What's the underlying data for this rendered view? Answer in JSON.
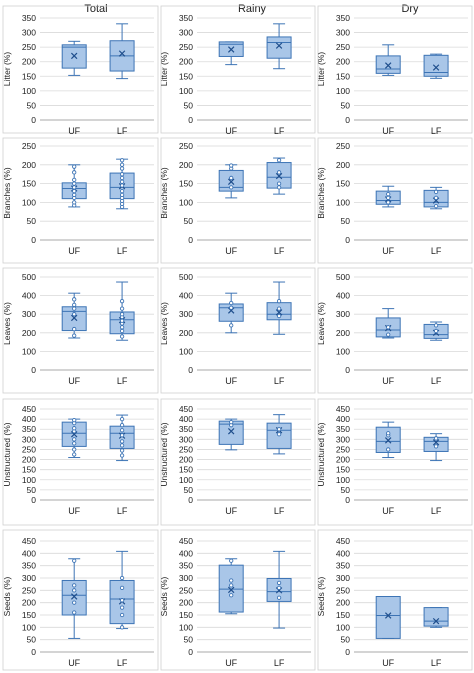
{
  "colors": {
    "box_fill": "#a9c6e8",
    "box_stroke": "#3d74b5",
    "gridline": "#d9d9d9",
    "frame": "#8c8c8c",
    "text": "#222222"
  },
  "column_titles": [
    "Total",
    "Rainy",
    "Dry"
  ],
  "chart_data": [
    {
      "type": "box",
      "row": 0,
      "col": 0,
      "title": "Total",
      "ylabel": "Litter (%)",
      "ylim": [
        0,
        350
      ],
      "yticks": [
        0,
        50,
        100,
        150,
        200,
        250,
        300,
        350
      ],
      "categories": [
        "UF",
        "LF"
      ],
      "boxes": [
        {
          "category": "UF",
          "min": 153,
          "q1": 178,
          "median": 250,
          "q3": 258,
          "max": 270,
          "mean": 220,
          "points": []
        },
        {
          "category": "LF",
          "min": 142,
          "q1": 168,
          "median": 220,
          "q3": 272,
          "max": 330,
          "mean": 228,
          "points": []
        }
      ]
    },
    {
      "type": "box",
      "row": 0,
      "col": 1,
      "title": "Rainy",
      "ylabel": "Litter (%)",
      "ylim": [
        0,
        350
      ],
      "yticks": [
        0,
        50,
        100,
        150,
        200,
        250,
        300,
        350
      ],
      "categories": [
        "UF",
        "LF"
      ],
      "boxes": [
        {
          "category": "UF",
          "min": 190,
          "q1": 218,
          "median": 260,
          "q3": 268,
          "max": 268,
          "mean": 242,
          "points": []
        },
        {
          "category": "LF",
          "min": 176,
          "q1": 212,
          "median": 266,
          "q3": 285,
          "max": 330,
          "mean": 255,
          "points": []
        }
      ]
    },
    {
      "type": "box",
      "row": 0,
      "col": 2,
      "title": "Dry",
      "ylabel": "Litter (%)",
      "ylim": [
        0,
        350
      ],
      "yticks": [
        0,
        50,
        100,
        150,
        200,
        250,
        300,
        350
      ],
      "categories": [
        "UF",
        "LF"
      ],
      "boxes": [
        {
          "category": "UF",
          "min": 153,
          "q1": 160,
          "median": 175,
          "q3": 220,
          "max": 258,
          "mean": 187,
          "points": []
        },
        {
          "category": "LF",
          "min": 143,
          "q1": 150,
          "median": 163,
          "q3": 222,
          "max": 226,
          "mean": 180,
          "points": []
        }
      ]
    },
    {
      "type": "box",
      "row": 1,
      "col": 0,
      "title": "Total",
      "ylabel": "Branches (%)",
      "ylim": [
        0,
        250
      ],
      "yticks": [
        0,
        50,
        100,
        150,
        200,
        250
      ],
      "categories": [
        "UF",
        "LF"
      ],
      "boxes": [
        {
          "category": "UF",
          "min": 88,
          "q1": 110,
          "median": 137,
          "q3": 152,
          "max": 200,
          "mean": 137,
          "points": [
            92,
            100,
            112,
            120,
            130,
            140,
            150,
            160,
            180,
            195
          ]
        },
        {
          "category": "LF",
          "min": 83,
          "q1": 110,
          "median": 140,
          "q3": 178,
          "max": 215,
          "mean": 143,
          "points": [
            88,
            96,
            104,
            112,
            120,
            130,
            145,
            155,
            165,
            175,
            190,
            200,
            212
          ]
        }
      ]
    },
    {
      "type": "box",
      "row": 1,
      "col": 1,
      "title": "Rainy",
      "ylabel": "Branches (%)",
      "ylim": [
        0,
        250
      ],
      "yticks": [
        0,
        50,
        100,
        150,
        200,
        250
      ],
      "categories": [
        "UF",
        "LF"
      ],
      "boxes": [
        {
          "category": "UF",
          "min": 112,
          "q1": 130,
          "median": 140,
          "q3": 185,
          "max": 200,
          "mean": 155,
          "points": [
            140,
            165,
            190,
            198
          ]
        },
        {
          "category": "LF",
          "min": 122,
          "q1": 138,
          "median": 167,
          "q3": 206,
          "max": 218,
          "mean": 170,
          "points": [
            140,
            150,
            180,
            212
          ]
        }
      ]
    },
    {
      "type": "box",
      "row": 1,
      "col": 2,
      "title": "Dry",
      "ylabel": "Branches (%)",
      "ylim": [
        0,
        250
      ],
      "yticks": [
        0,
        50,
        100,
        150,
        200,
        250
      ],
      "categories": [
        "UF",
        "LF"
      ],
      "boxes": [
        {
          "category": "UF",
          "min": 88,
          "q1": 95,
          "median": 105,
          "q3": 130,
          "max": 143,
          "mean": 108,
          "points": [
            100,
            112,
            122
          ]
        },
        {
          "category": "LF",
          "min": 83,
          "q1": 88,
          "median": 100,
          "q3": 132,
          "max": 140,
          "mean": 105,
          "points": [
            90,
            112,
            128
          ]
        }
      ]
    },
    {
      "type": "box",
      "row": 2,
      "col": 0,
      "title": "Total",
      "ylabel": "Leaves (%)",
      "ylim": [
        0,
        500
      ],
      "yticks": [
        0,
        100,
        200,
        300,
        400,
        500
      ],
      "categories": [
        "UF",
        "LF"
      ],
      "boxes": [
        {
          "category": "UF",
          "min": 172,
          "q1": 212,
          "median": 315,
          "q3": 340,
          "max": 413,
          "mean": 280,
          "points": [
            185,
            220,
            300,
            330,
            350,
            380
          ]
        },
        {
          "category": "LF",
          "min": 160,
          "q1": 195,
          "median": 270,
          "q3": 312,
          "max": 473,
          "mean": 268,
          "points": [
            180,
            210,
            230,
            250,
            265,
            285,
            300,
            330,
            370
          ]
        }
      ]
    },
    {
      "type": "box",
      "row": 2,
      "col": 1,
      "title": "Rainy",
      "ylabel": "Leaves (%)",
      "ylim": [
        0,
        500
      ],
      "yticks": [
        0,
        100,
        200,
        300,
        400,
        500
      ],
      "categories": [
        "UF",
        "LF"
      ],
      "boxes": [
        {
          "category": "UF",
          "min": 200,
          "q1": 262,
          "median": 335,
          "q3": 355,
          "max": 413,
          "mean": 320,
          "points": [
            240,
            335,
            360
          ]
        },
        {
          "category": "LF",
          "min": 192,
          "q1": 270,
          "median": 300,
          "q3": 362,
          "max": 473,
          "mean": 310,
          "points": [
            290,
            330,
            370
          ]
        }
      ]
    },
    {
      "type": "box",
      "row": 2,
      "col": 2,
      "title": "Dry",
      "ylabel": "Leaves (%)",
      "ylim": [
        0,
        500
      ],
      "yticks": [
        0,
        100,
        200,
        300,
        400,
        500
      ],
      "categories": [
        "UF",
        "LF"
      ],
      "boxes": [
        {
          "category": "UF",
          "min": 172,
          "q1": 178,
          "median": 215,
          "q3": 280,
          "max": 330,
          "mean": 225,
          "points": [
            190,
            230
          ]
        },
        {
          "category": "LF",
          "min": 160,
          "q1": 170,
          "median": 190,
          "q3": 245,
          "max": 258,
          "mean": 200,
          "points": [
            210,
            240
          ]
        }
      ]
    },
    {
      "type": "box",
      "row": 3,
      "col": 0,
      "title": "Total",
      "ylabel": "Unstructured (%)",
      "ylim": [
        0,
        450
      ],
      "yticks": [
        0,
        50,
        100,
        150,
        200,
        250,
        300,
        350,
        400,
        450
      ],
      "categories": [
        "UF",
        "LF"
      ],
      "boxes": [
        {
          "category": "UF",
          "min": 210,
          "q1": 265,
          "median": 330,
          "q3": 385,
          "max": 400,
          "mean": 325,
          "points": [
            225,
            250,
            280,
            300,
            340,
            355,
            380,
            395
          ]
        },
        {
          "category": "LF",
          "min": 195,
          "q1": 255,
          "median": 330,
          "q3": 365,
          "max": 420,
          "mean": 318,
          "points": [
            220,
            245,
            270,
            290,
            320,
            345,
            370,
            400
          ]
        }
      ]
    },
    {
      "type": "box",
      "row": 3,
      "col": 1,
      "title": "Rainy",
      "ylabel": "Unstructured (%)",
      "ylim": [
        0,
        450
      ],
      "yticks": [
        0,
        50,
        100,
        150,
        200,
        250,
        300,
        350,
        400,
        450
      ],
      "categories": [
        "UF",
        "LF"
      ],
      "boxes": [
        {
          "category": "UF",
          "min": 248,
          "q1": 275,
          "median": 375,
          "q3": 390,
          "max": 400,
          "mean": 340,
          "points": [
            370,
            385
          ]
        },
        {
          "category": "LF",
          "min": 228,
          "q1": 255,
          "median": 345,
          "q3": 380,
          "max": 422,
          "mean": 345,
          "points": [
            325,
            350
          ]
        }
      ]
    },
    {
      "type": "box",
      "row": 3,
      "col": 2,
      "title": "Dry",
      "ylabel": "Unstructured (%)",
      "ylim": [
        0,
        450
      ],
      "yticks": [
        0,
        50,
        100,
        150,
        200,
        250,
        300,
        350,
        400,
        450
      ],
      "categories": [
        "UF",
        "LF"
      ],
      "boxes": [
        {
          "category": "UF",
          "min": 210,
          "q1": 235,
          "median": 290,
          "q3": 360,
          "max": 385,
          "mean": 295,
          "points": [
            250,
            320,
            330
          ]
        },
        {
          "category": "LF",
          "min": 195,
          "q1": 240,
          "median": 290,
          "q3": 310,
          "max": 328,
          "mean": 285,
          "points": [
            265,
            305
          ]
        }
      ]
    },
    {
      "type": "box",
      "row": 4,
      "col": 0,
      "title": "Total",
      "ylabel": "Seeds (%)",
      "ylim": [
        0,
        450
      ],
      "yticks": [
        0,
        50,
        100,
        150,
        200,
        250,
        300,
        350,
        400,
        450
      ],
      "categories": [
        "UF",
        "LF"
      ],
      "boxes": [
        {
          "category": "UF",
          "min": 55,
          "q1": 150,
          "median": 230,
          "q3": 290,
          "max": 378,
          "mean": 225,
          "points": [
            160,
            200,
            250,
            270,
            370
          ]
        },
        {
          "category": "LF",
          "min": 95,
          "q1": 115,
          "median": 215,
          "q3": 290,
          "max": 408,
          "mean": 205,
          "points": [
            100,
            150,
            180,
            210,
            260,
            300
          ]
        }
      ]
    },
    {
      "type": "box",
      "row": 4,
      "col": 1,
      "title": "Rainy",
      "ylabel": "Seeds (%)",
      "ylim": [
        0,
        450
      ],
      "yticks": [
        0,
        50,
        100,
        150,
        200,
        250,
        300,
        350,
        400,
        450
      ],
      "categories": [
        "UF",
        "LF"
      ],
      "boxes": [
        {
          "category": "UF",
          "min": 155,
          "q1": 162,
          "median": 255,
          "q3": 352,
          "max": 378,
          "mean": 252,
          "points": [
            230,
            270,
            290,
            370
          ]
        },
        {
          "category": "LF",
          "min": 97,
          "q1": 205,
          "median": 245,
          "q3": 298,
          "max": 408,
          "mean": 250,
          "points": [
            220,
            260,
            280
          ]
        }
      ]
    },
    {
      "type": "box",
      "row": 4,
      "col": 2,
      "title": "Dry",
      "ylabel": "Seeds (%)",
      "ylim": [
        0,
        450
      ],
      "yticks": [
        0,
        50,
        100,
        150,
        200,
        250,
        300,
        350,
        400,
        450
      ],
      "categories": [
        "UF",
        "LF"
      ],
      "boxes": [
        {
          "category": "UF",
          "min": 55,
          "q1": 55,
          "median": 148,
          "q3": 225,
          "max": 225,
          "mean": 148,
          "points": []
        },
        {
          "category": "LF",
          "min": 100,
          "q1": 105,
          "median": 125,
          "q3": 180,
          "max": 180,
          "mean": 125,
          "points": []
        }
      ]
    }
  ]
}
